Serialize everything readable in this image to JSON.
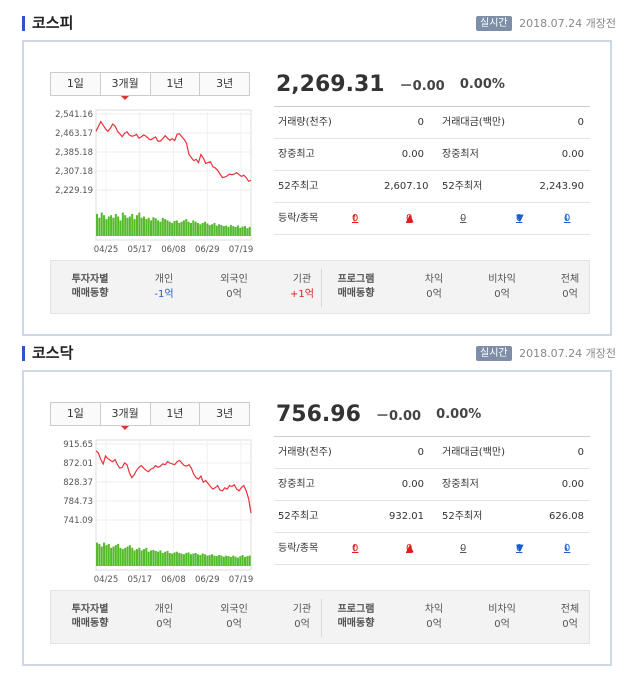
{
  "markets": [
    {
      "title": "코스피",
      "realtime_badge": "실시간",
      "datetime": "2018.07.24",
      "status": "개장전",
      "tabs": [
        "1일",
        "3개월",
        "1년",
        "3년"
      ],
      "active_tab": "3개월",
      "price": "2,269.31",
      "change": "－0.00",
      "change_pct": "0.00%",
      "stats": {
        "volume_label": "거래량(천주)",
        "volume": "0",
        "amount_label": "거래대금(백만)",
        "amount": "0",
        "intraday_high_label": "장중최고",
        "intraday_high": "0.00",
        "intraday_low_label": "장중최저",
        "intraday_low": "0.00",
        "high52_label": "52주최고",
        "high52": "2,607.10",
        "low52_label": "52주최저",
        "low52": "2,243.90",
        "updown_label": "등락/종목",
        "updown": [
          {
            "icon": "upper-limit-icon",
            "glyph": "🠕",
            "color": "#e01c1c",
            "value": "0"
          },
          {
            "icon": "up-icon",
            "glyph": "▲",
            "color": "#e01c1c",
            "value": "0"
          },
          {
            "icon": "flat-icon",
            "glyph": "–",
            "color": "#555555",
            "value": "0"
          },
          {
            "icon": "down-icon",
            "glyph": "▼",
            "color": "#1a5fd0",
            "value": "0"
          },
          {
            "icon": "lower-limit-icon",
            "glyph": "🠗",
            "color": "#1a5fd0",
            "value": "0"
          }
        ]
      },
      "investors": {
        "title_line1": "투자자별",
        "title_line2": "매매동향",
        "individual_label": "개인",
        "individual": "-1억",
        "individual_color": "#1a5fd0",
        "foreign_label": "외국인",
        "foreign": "0억",
        "foreign_color": "#555555",
        "institution_label": "기관",
        "institution": "+1억",
        "institution_color": "#e01c1c",
        "program_line1": "프로그램",
        "program_line2": "매매동향",
        "arbitrage_label": "차익",
        "arbitrage": "0억",
        "nonarbitrage_label": "비차익",
        "nonarbitrage": "0억",
        "total_label": "전체",
        "total": "0억"
      },
      "chart_data": {
        "type": "line",
        "y_ticks": [
          "2,541.16",
          "2,463.17",
          "2,385.18",
          "2,307.18",
          "2,229.19"
        ],
        "x_ticks": [
          "04/25",
          "05/17",
          "06/08",
          "06/29",
          "07/19"
        ],
        "ylim": [
          2229.19,
          2541.16
        ],
        "line_color": "#e8323c",
        "volume_color": "#55bb2c",
        "values": [
          2470,
          2490,
          2510,
          2495,
          2480,
          2470,
          2482,
          2500,
          2492,
          2470,
          2460,
          2448,
          2462,
          2468,
          2455,
          2450,
          2452,
          2458,
          2442,
          2447,
          2455,
          2450,
          2440,
          2435,
          2442,
          2447,
          2430,
          2430,
          2440,
          2452,
          2442,
          2433,
          2440,
          2432,
          2458,
          2460,
          2448,
          2437,
          2420,
          2375,
          2362,
          2350,
          2355,
          2342,
          2375,
          2360,
          2338,
          2342,
          2345,
          2325,
          2320,
          2310,
          2295,
          2280,
          2282,
          2287,
          2295,
          2292,
          2295,
          2300,
          2292,
          2285,
          2290,
          2280,
          2265,
          2269
        ],
        "volume": [
          0.85,
          0.7,
          0.9,
          0.8,
          0.65,
          0.75,
          0.8,
          0.7,
          0.85,
          0.75,
          0.6,
          0.9,
          0.8,
          0.7,
          0.75,
          0.85,
          0.65,
          0.8,
          0.9,
          0.7,
          0.75,
          0.65,
          0.7,
          0.6,
          0.72,
          0.68,
          0.6,
          0.55,
          0.7,
          0.65,
          0.6,
          0.55,
          0.5,
          0.58,
          0.6,
          0.5,
          0.55,
          0.6,
          0.65,
          0.55,
          0.5,
          0.6,
          0.55,
          0.5,
          0.45,
          0.5,
          0.55,
          0.48,
          0.42,
          0.45,
          0.5,
          0.4,
          0.45,
          0.42,
          0.38,
          0.4,
          0.35,
          0.42,
          0.38,
          0.35,
          0.4,
          0.32,
          0.36,
          0.38,
          0.3,
          0.35
        ]
      }
    },
    {
      "title": "코스닥",
      "realtime_badge": "실시간",
      "datetime": "2018.07.24",
      "status": "개장전",
      "tabs": [
        "1일",
        "3개월",
        "1년",
        "3년"
      ],
      "active_tab": "3개월",
      "price": "756.96",
      "change": "－0.00",
      "change_pct": "0.00%",
      "stats": {
        "volume_label": "거래량(천주)",
        "volume": "0",
        "amount_label": "거래대금(백만)",
        "amount": "0",
        "intraday_high_label": "장중최고",
        "intraday_high": "0.00",
        "intraday_low_label": "장중최저",
        "intraday_low": "0.00",
        "high52_label": "52주최고",
        "high52": "932.01",
        "low52_label": "52주최저",
        "low52": "626.08",
        "updown_label": "등락/종목",
        "updown": [
          {
            "icon": "upper-limit-icon",
            "glyph": "🠕",
            "color": "#e01c1c",
            "value": "0"
          },
          {
            "icon": "up-icon",
            "glyph": "▲",
            "color": "#e01c1c",
            "value": "0"
          },
          {
            "icon": "flat-icon",
            "glyph": "–",
            "color": "#555555",
            "value": "0"
          },
          {
            "icon": "down-icon",
            "glyph": "▼",
            "color": "#1a5fd0",
            "value": "0"
          },
          {
            "icon": "lower-limit-icon",
            "glyph": "🠗",
            "color": "#1a5fd0",
            "value": "0"
          }
        ]
      },
      "investors": {
        "title_line1": "투자자별",
        "title_line2": "매매동향",
        "individual_label": "개인",
        "individual": "0억",
        "individual_color": "#555555",
        "foreign_label": "외국인",
        "foreign": "0억",
        "foreign_color": "#555555",
        "institution_label": "기관",
        "institution": "0억",
        "institution_color": "#555555",
        "program_line1": "프로그램",
        "program_line2": "매매동향",
        "arbitrage_label": "차익",
        "arbitrage": "0억",
        "nonarbitrage_label": "비차익",
        "nonarbitrage": "0억",
        "total_label": "전체",
        "total": "0억"
      },
      "chart_data": {
        "type": "line",
        "y_ticks": [
          "915.65",
          "872.01",
          "828.37",
          "784.73",
          "741.09"
        ],
        "x_ticks": [
          "04/25",
          "05/17",
          "06/08",
          "06/29",
          "07/19"
        ],
        "ylim": [
          741.09,
          915.65
        ],
        "line_color": "#e8323c",
        "volume_color": "#55bb2c",
        "values": [
          900,
          895,
          880,
          870,
          888,
          882,
          878,
          875,
          880,
          868,
          860,
          862,
          872,
          868,
          850,
          838,
          845,
          855,
          862,
          866,
          860,
          855,
          852,
          858,
          860,
          866,
          862,
          865,
          870,
          868,
          875,
          872,
          870,
          868,
          875,
          878,
          872,
          866,
          865,
          868,
          860,
          846,
          838,
          835,
          842,
          828,
          832,
          825,
          818,
          812,
          815,
          820,
          810,
          808,
          815,
          812,
          820,
          818,
          822,
          812,
          808,
          816,
          820,
          808,
          790,
          757
        ],
        "volume": [
          0.9,
          0.85,
          0.75,
          0.9,
          0.8,
          0.85,
          0.7,
          0.75,
          0.8,
          0.85,
          0.7,
          0.65,
          0.7,
          0.75,
          0.8,
          0.7,
          0.6,
          0.65,
          0.7,
          0.6,
          0.65,
          0.7,
          0.55,
          0.6,
          0.62,
          0.58,
          0.55,
          0.6,
          0.5,
          0.55,
          0.58,
          0.5,
          0.48,
          0.52,
          0.55,
          0.5,
          0.48,
          0.45,
          0.5,
          0.52,
          0.45,
          0.48,
          0.5,
          0.45,
          0.42,
          0.48,
          0.45,
          0.4,
          0.42,
          0.45,
          0.4,
          0.38,
          0.42,
          0.4,
          0.36,
          0.4,
          0.38,
          0.35,
          0.4,
          0.36,
          0.32,
          0.38,
          0.42,
          0.35,
          0.38,
          0.4
        ]
      }
    }
  ]
}
